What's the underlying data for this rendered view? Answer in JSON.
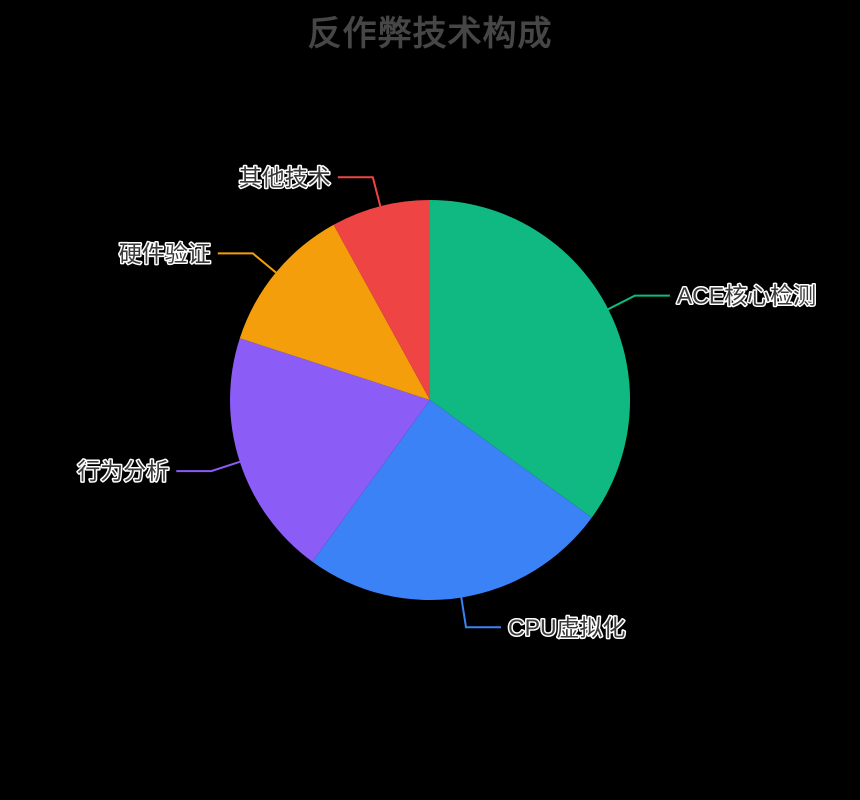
{
  "chart_data": {
    "type": "pie",
    "title": "反作弊技术构成",
    "unit": "%",
    "background": "#000000",
    "title_color": "#464646",
    "label_style": "outside-with-leader-lines",
    "legend": "none",
    "start_angle": "top",
    "direction": "clockwise",
    "series": [
      {
        "name": "ACE核心检测",
        "value": 35,
        "color": "#10B981"
      },
      {
        "name": "CPU虚拟化",
        "value": 25,
        "color": "#3B82F6"
      },
      {
        "name": "行为分析",
        "value": 20,
        "color": "#8B5CF6"
      },
      {
        "name": "硬件验证",
        "value": 12,
        "color": "#F59E0B"
      },
      {
        "name": "其他技术",
        "value": 8,
        "color": "#EF4444"
      }
    ]
  }
}
